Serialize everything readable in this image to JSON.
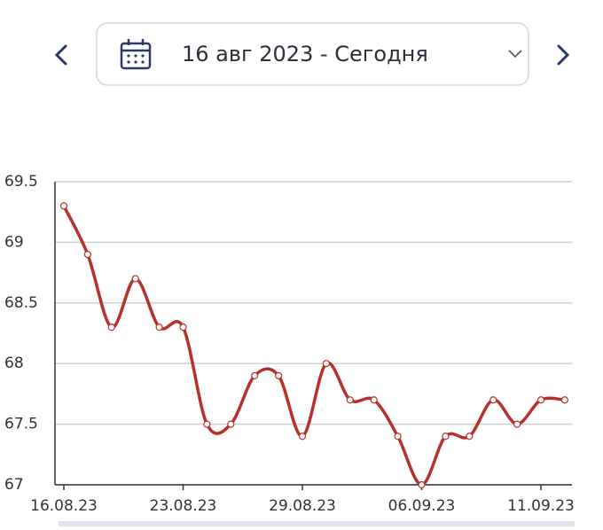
{
  "header": {
    "date_range": "16 авг 2023 - Сегодня"
  },
  "chart_data": {
    "type": "line",
    "categories": [
      "16.08.23",
      null,
      null,
      null,
      null,
      "23.08.23",
      null,
      null,
      null,
      null,
      "29.08.23",
      null,
      null,
      null,
      null,
      "06.09.23",
      null,
      null,
      null,
      null,
      "11.09.23",
      null
    ],
    "series": [
      {
        "color": "#b8302a",
        "values": [
          69.3,
          68.9,
          68.3,
          68.7,
          68.3,
          68.3,
          67.5,
          67.5,
          67.9,
          67.9,
          67.4,
          68.0,
          67.7,
          67.7,
          67.4,
          67.0,
          67.4,
          67.4,
          67.7,
          67.5,
          67.7,
          67.7
        ]
      }
    ],
    "ylim": [
      67,
      69.5
    ],
    "yticks": [
      67,
      67.5,
      68,
      68.5,
      69,
      69.5
    ],
    "grid": true
  }
}
